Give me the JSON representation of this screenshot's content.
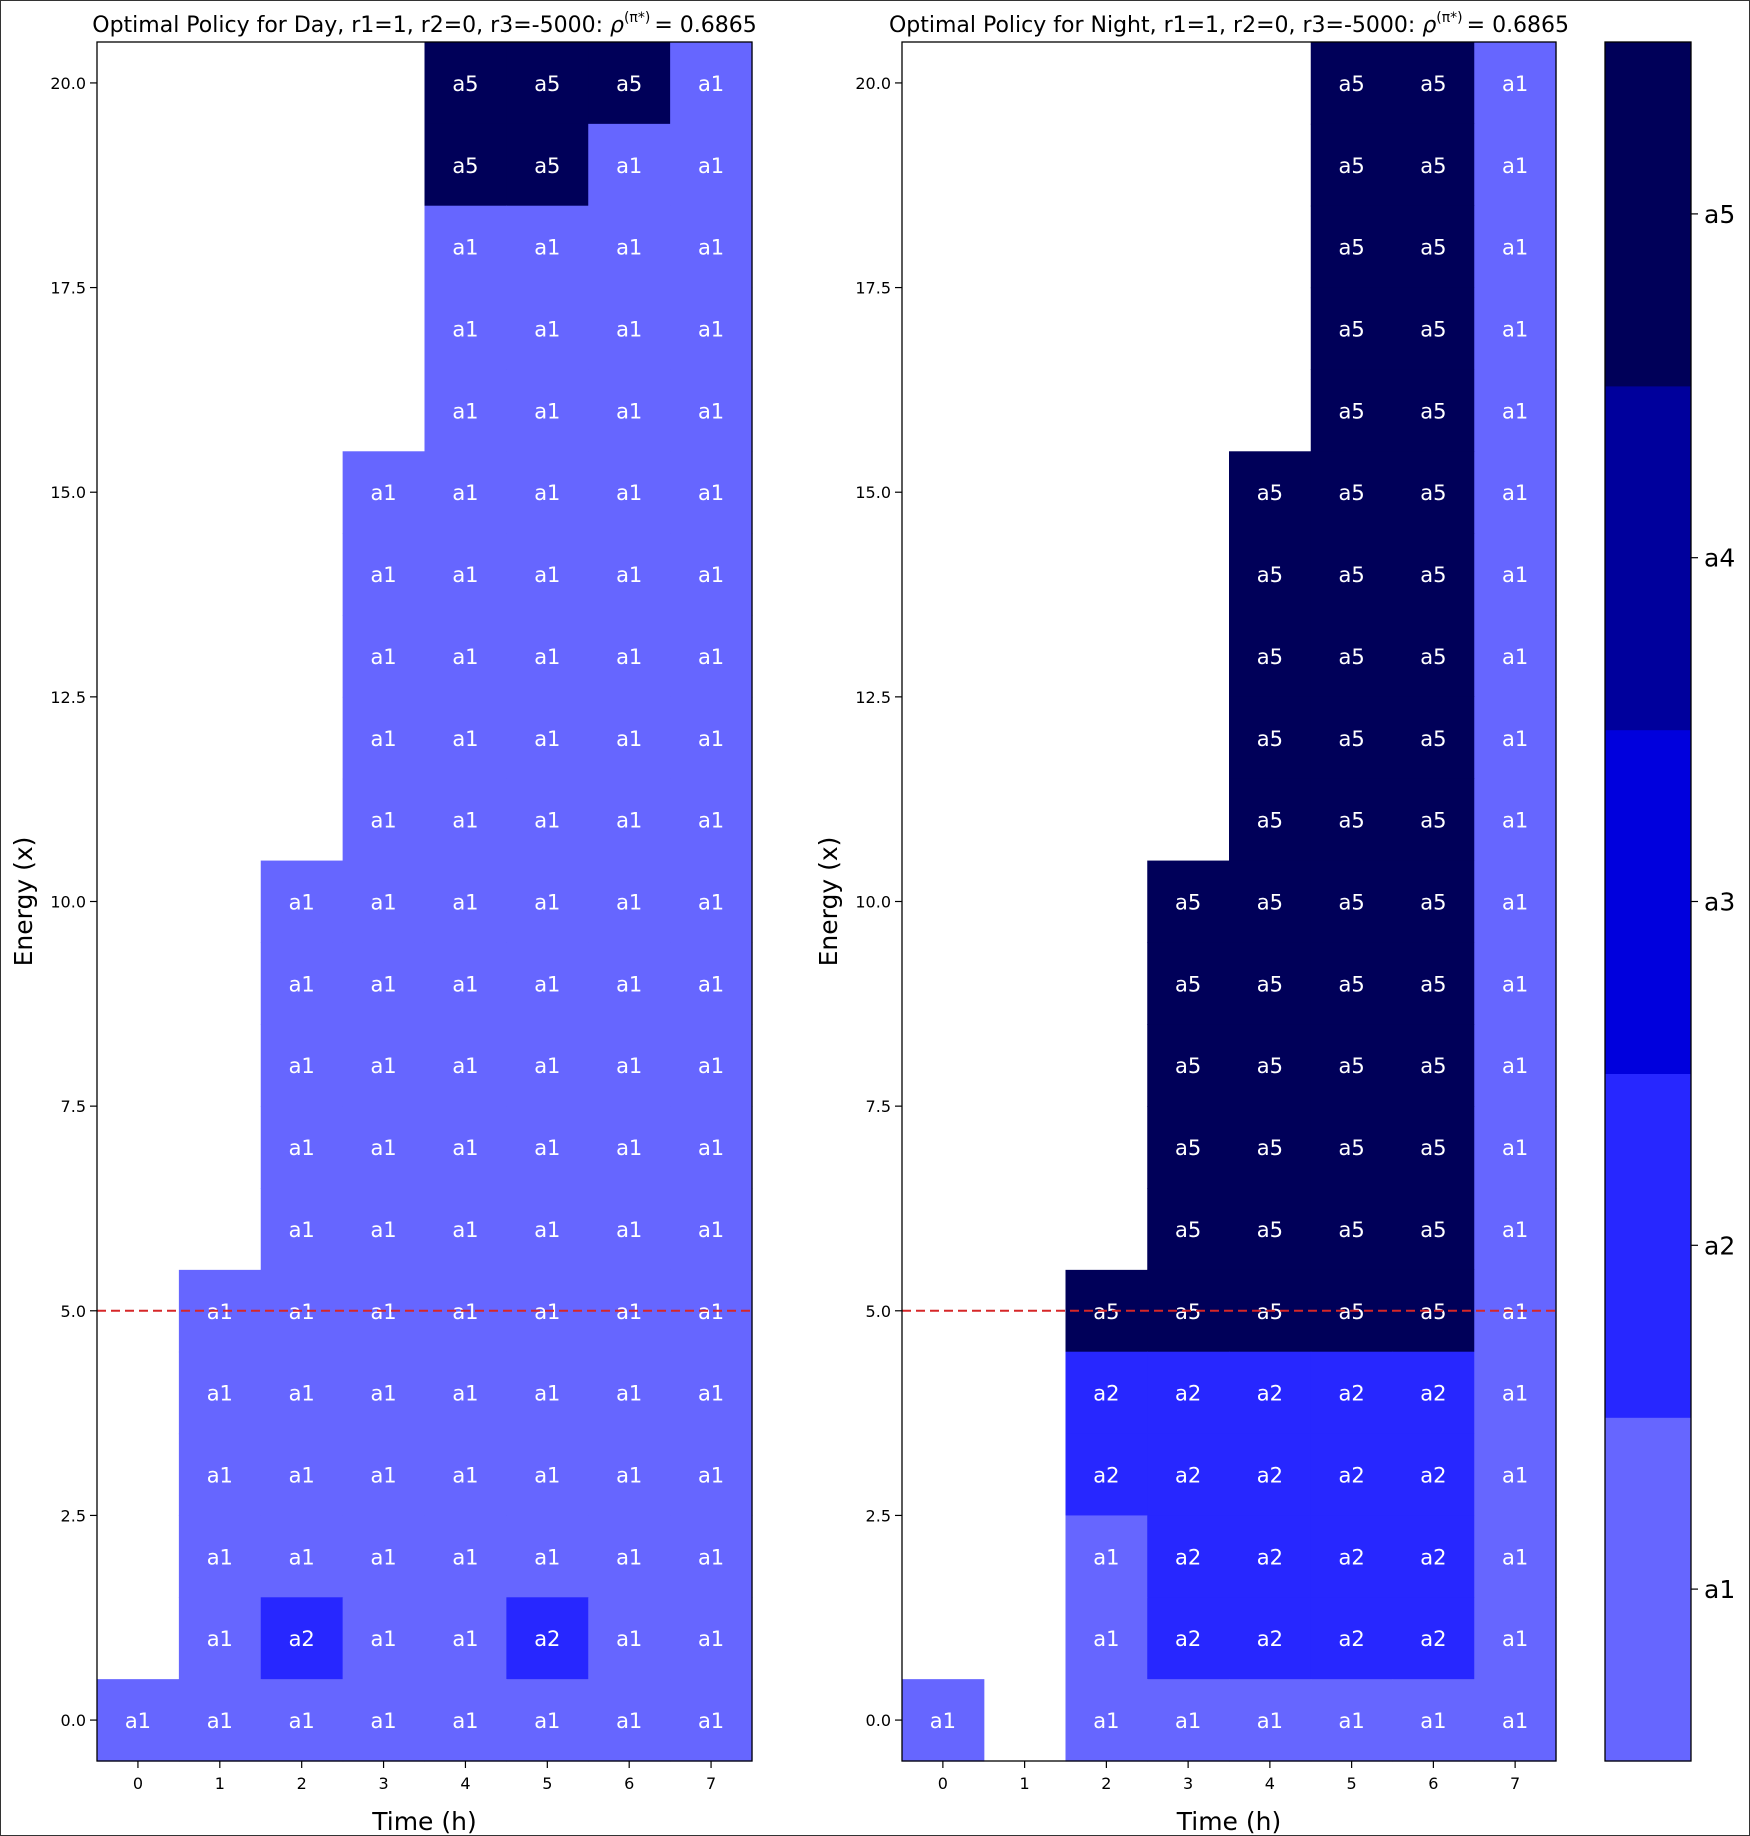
{
  "chart_data": [
    {
      "type": "heatmap",
      "title": "Optimal Policy for Day, r1=1, r2=0, r3=-5000: ",
      "title_rho": "ρ",
      "title_sup": "(π*)",
      "title_value": "= 0.6865",
      "xlabel": "Time (h)",
      "ylabel": "Energy (x)",
      "x": [
        0,
        1,
        2,
        3,
        4,
        5,
        6,
        7
      ],
      "x_ticks": [
        "0",
        "1",
        "2",
        "3",
        "4",
        "5",
        "6",
        "7"
      ],
      "y": [
        0,
        1,
        2,
        3,
        4,
        5,
        6,
        7,
        8,
        9,
        10,
        11,
        12,
        13,
        14,
        15,
        16,
        17,
        18,
        19,
        20
      ],
      "y_ticks": [
        {
          "value": 0,
          "label": "0.0"
        },
        {
          "value": 2.5,
          "label": "2.5"
        },
        {
          "value": 5,
          "label": "5.0"
        },
        {
          "value": 7.5,
          "label": "7.5"
        },
        {
          "value": 10,
          "label": "10.0"
        },
        {
          "value": 12.5,
          "label": "12.5"
        },
        {
          "value": 15,
          "label": "15.0"
        },
        {
          "value": 17.5,
          "label": "17.5"
        },
        {
          "value": 20,
          "label": "20.0"
        }
      ],
      "xlim": [
        -0.5,
        7.5
      ],
      "ylim": [
        -0.5,
        20.5
      ],
      "threshold_line": {
        "y": 5,
        "color": "#d62728",
        "style": "dashed"
      },
      "rows_top_to_bottom": [
        [
          "",
          "",
          "",
          "",
          "a5",
          "a5",
          "a5",
          "a1"
        ],
        [
          "",
          "",
          "",
          "",
          "a5",
          "a5",
          "a1",
          "a1"
        ],
        [
          "",
          "",
          "",
          "",
          "a1",
          "a1",
          "a1",
          "a1"
        ],
        [
          "",
          "",
          "",
          "",
          "a1",
          "a1",
          "a1",
          "a1"
        ],
        [
          "",
          "",
          "",
          "",
          "a1",
          "a1",
          "a1",
          "a1"
        ],
        [
          "",
          "",
          "",
          "a1",
          "a1",
          "a1",
          "a1",
          "a1"
        ],
        [
          "",
          "",
          "",
          "a1",
          "a1",
          "a1",
          "a1",
          "a1"
        ],
        [
          "",
          "",
          "",
          "a1",
          "a1",
          "a1",
          "a1",
          "a1"
        ],
        [
          "",
          "",
          "",
          "a1",
          "a1",
          "a1",
          "a1",
          "a1"
        ],
        [
          "",
          "",
          "",
          "a1",
          "a1",
          "a1",
          "a1",
          "a1"
        ],
        [
          "",
          "",
          "a1",
          "a1",
          "a1",
          "a1",
          "a1",
          "a1"
        ],
        [
          "",
          "",
          "a1",
          "a1",
          "a1",
          "a1",
          "a1",
          "a1"
        ],
        [
          "",
          "",
          "a1",
          "a1",
          "a1",
          "a1",
          "a1",
          "a1"
        ],
        [
          "",
          "",
          "a1",
          "a1",
          "a1",
          "a1",
          "a1",
          "a1"
        ],
        [
          "",
          "",
          "a1",
          "a1",
          "a1",
          "a1",
          "a1",
          "a1"
        ],
        [
          "",
          "a1",
          "a1",
          "a1",
          "a1",
          "a1",
          "a1",
          "a1"
        ],
        [
          "",
          "a1",
          "a1",
          "a1",
          "a1",
          "a1",
          "a1",
          "a1"
        ],
        [
          "",
          "a1",
          "a1",
          "a1",
          "a1",
          "a1",
          "a1",
          "a1"
        ],
        [
          "",
          "a1",
          "a1",
          "a1",
          "a1",
          "a1",
          "a1",
          "a1"
        ],
        [
          "",
          "a1",
          "a2",
          "a1",
          "a1",
          "a2",
          "a1",
          "a1"
        ],
        [
          "a1",
          "a1",
          "a1",
          "a1",
          "a1",
          "a1",
          "a1",
          "a1"
        ]
      ]
    },
    {
      "type": "heatmap",
      "title": "Optimal Policy for Night, r1=1, r2=0, r3=-5000: ",
      "title_rho": "ρ",
      "title_sup": "(π*)",
      "title_value": "= 0.6865",
      "xlabel": "Time (h)",
      "ylabel": "Energy (x)",
      "x": [
        0,
        1,
        2,
        3,
        4,
        5,
        6,
        7
      ],
      "x_ticks": [
        "0",
        "1",
        "2",
        "3",
        "4",
        "5",
        "6",
        "7"
      ],
      "y": [
        0,
        1,
        2,
        3,
        4,
        5,
        6,
        7,
        8,
        9,
        10,
        11,
        12,
        13,
        14,
        15,
        16,
        17,
        18,
        19,
        20
      ],
      "y_ticks": [
        {
          "value": 0,
          "label": "0.0"
        },
        {
          "value": 2.5,
          "label": "2.5"
        },
        {
          "value": 5,
          "label": "5.0"
        },
        {
          "value": 7.5,
          "label": "7.5"
        },
        {
          "value": 10,
          "label": "10.0"
        },
        {
          "value": 12.5,
          "label": "12.5"
        },
        {
          "value": 15,
          "label": "15.0"
        },
        {
          "value": 17.5,
          "label": "17.5"
        },
        {
          "value": 20,
          "label": "20.0"
        }
      ],
      "xlim": [
        -0.5,
        7.5
      ],
      "ylim": [
        -0.5,
        20.5
      ],
      "threshold_line": {
        "y": 5,
        "color": "#d62728",
        "style": "dashed"
      },
      "rows_top_to_bottom": [
        [
          "",
          "",
          "",
          "",
          "",
          "a5",
          "a5",
          "a1"
        ],
        [
          "",
          "",
          "",
          "",
          "",
          "a5",
          "a5",
          "a1"
        ],
        [
          "",
          "",
          "",
          "",
          "",
          "a5",
          "a5",
          "a1"
        ],
        [
          "",
          "",
          "",
          "",
          "",
          "a5",
          "a5",
          "a1"
        ],
        [
          "",
          "",
          "",
          "",
          "",
          "a5",
          "a5",
          "a1"
        ],
        [
          "",
          "",
          "",
          "",
          "a5",
          "a5",
          "a5",
          "a1"
        ],
        [
          "",
          "",
          "",
          "",
          "a5",
          "a5",
          "a5",
          "a1"
        ],
        [
          "",
          "",
          "",
          "",
          "a5",
          "a5",
          "a5",
          "a1"
        ],
        [
          "",
          "",
          "",
          "",
          "a5",
          "a5",
          "a5",
          "a1"
        ],
        [
          "",
          "",
          "",
          "",
          "a5",
          "a5",
          "a5",
          "a1"
        ],
        [
          "",
          "",
          "",
          "a5",
          "a5",
          "a5",
          "a5",
          "a1"
        ],
        [
          "",
          "",
          "",
          "a5",
          "a5",
          "a5",
          "a5",
          "a1"
        ],
        [
          "",
          "",
          "",
          "a5",
          "a5",
          "a5",
          "a5",
          "a1"
        ],
        [
          "",
          "",
          "",
          "a5",
          "a5",
          "a5",
          "a5",
          "a1"
        ],
        [
          "",
          "",
          "",
          "a5",
          "a5",
          "a5",
          "a5",
          "a1"
        ],
        [
          "",
          "",
          "a5",
          "a5",
          "a5",
          "a5",
          "a5",
          "a1"
        ],
        [
          "",
          "",
          "a2",
          "a2",
          "a2",
          "a2",
          "a2",
          "a1"
        ],
        [
          "",
          "",
          "a2",
          "a2",
          "a2",
          "a2",
          "a2",
          "a1"
        ],
        [
          "",
          "",
          "a1",
          "a2",
          "a2",
          "a2",
          "a2",
          "a1"
        ],
        [
          "",
          "",
          "a1",
          "a2",
          "a2",
          "a2",
          "a2",
          "a1"
        ],
        [
          "a1",
          "",
          "a1",
          "a1",
          "a1",
          "a1",
          "a1",
          "a1"
        ]
      ]
    },
    {
      "type": "colorbar",
      "categories_bottom_to_top": [
        "a1",
        "a2",
        "a3",
        "a4",
        "a5"
      ],
      "colors": {
        "a1": "#6666ff",
        "a2": "#2727ff",
        "a3": "#0000dd",
        "a4": "#00009c",
        "a5": "#000059"
      },
      "empty_color": "#ffffff",
      "cell_text_color": "#ffffff"
    }
  ]
}
